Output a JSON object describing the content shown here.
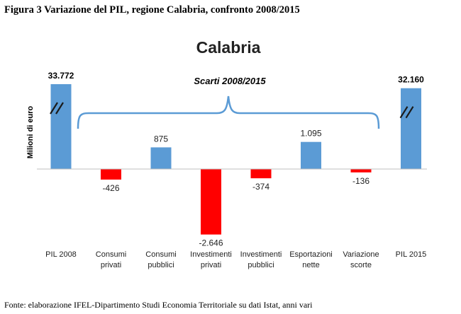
{
  "figure": {
    "caption": "Figura 3 Variazione del PIL, regione Calabria, confronto 2008/2015",
    "source": "Fonte: elaborazione IFEL-Dipartimento Studi Economia Territoriale su dati Istat, anni vari"
  },
  "chart_data": {
    "type": "bar",
    "title": "Calabria",
    "ylabel": "Milioni di euro",
    "xlabel": "",
    "grid": false,
    "legend": "none",
    "axis_break_on_totals": true,
    "annotation": "Scarti 2008/2015",
    "categories": [
      [
        "PIL 2008"
      ],
      [
        "Consumi",
        "privati"
      ],
      [
        "Consumi",
        "pubblici"
      ],
      [
        "Investimenti",
        "privati"
      ],
      [
        "Investimenti",
        "pubblici"
      ],
      [
        "Esportazioni",
        "nette"
      ],
      [
        "Variazione",
        "scorte"
      ],
      [
        "PIL 2015"
      ]
    ],
    "values": [
      33772,
      -426,
      875,
      -2646,
      -374,
      1095,
      -136,
      32160
    ],
    "labels": [
      "33.772",
      "-426",
      "875",
      "-2.646",
      "-374",
      "1.095",
      "-136",
      "32.160"
    ],
    "is_total": [
      true,
      false,
      false,
      false,
      false,
      false,
      false,
      true
    ],
    "colors": {
      "positive": "#5B9BD5",
      "negative": "#FF0000",
      "axis": "#BFBFBF",
      "brace": "#5B9BD5"
    }
  }
}
